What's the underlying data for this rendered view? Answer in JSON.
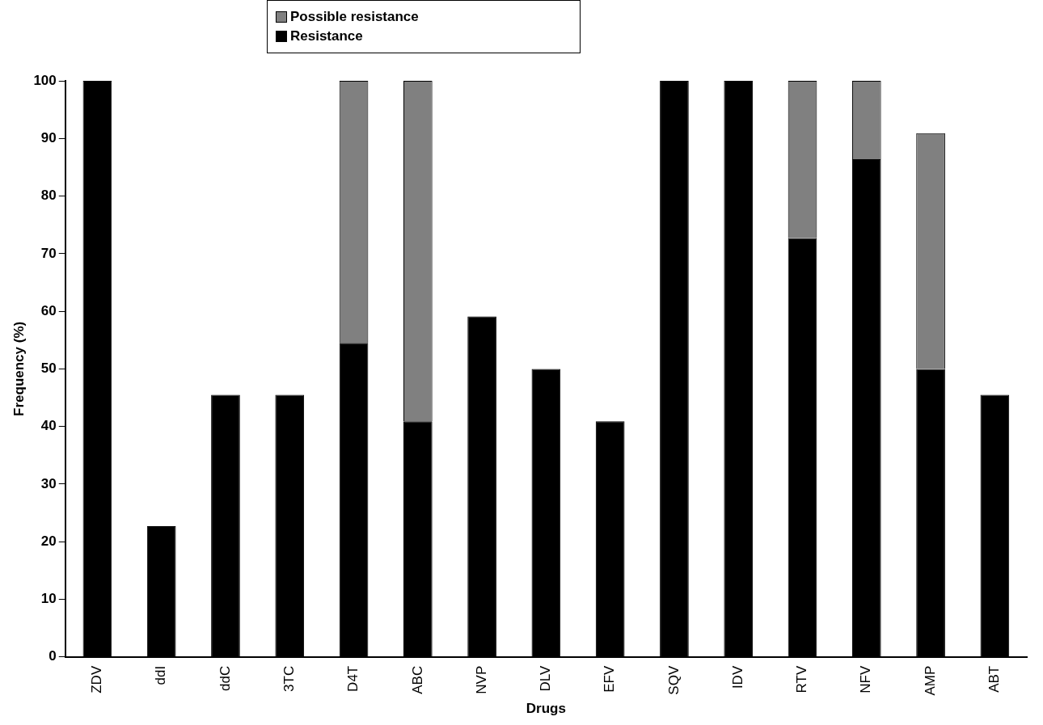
{
  "chart_data": {
    "type": "bar",
    "stacked": true,
    "xlabel": "Drugs",
    "ylabel": "Frequency (%)",
    "categories": [
      "ZDV",
      "ddI",
      "ddC",
      "3TC",
      "D4T",
      "ABC",
      "NVP",
      "DLV",
      "EFV",
      "SQV",
      "IDV",
      "RTV",
      "NFV",
      "AMP",
      "ABT"
    ],
    "series": [
      {
        "name": "Resistance",
        "color": "#000000",
        "values": [
          100,
          22.7,
          45.5,
          45.5,
          54.5,
          40.9,
          59.1,
          50,
          40.9,
          100,
          100,
          72.7,
          86.4,
          50,
          45.5
        ]
      },
      {
        "name": "Possible resistance",
        "color": "#808080",
        "values": [
          null,
          null,
          null,
          null,
          45.5,
          59.1,
          null,
          null,
          null,
          null,
          null,
          27.3,
          13.6,
          40.9,
          null
        ]
      }
    ],
    "ylim": [
      0,
      100
    ],
    "yticks": [
      0,
      10,
      20,
      30,
      40,
      50,
      60,
      70,
      80,
      90,
      100
    ],
    "grid": false,
    "legend": "top"
  }
}
